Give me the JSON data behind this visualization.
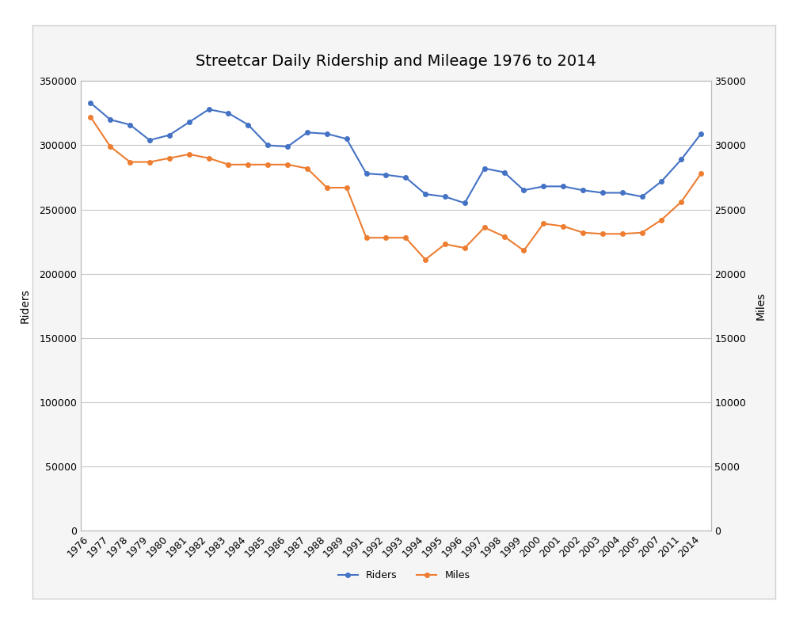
{
  "title": "Streetcar Daily Ridership and Mileage 1976 to 2014",
  "years": [
    1976,
    1977,
    1978,
    1979,
    1980,
    1981,
    1982,
    1983,
    1984,
    1985,
    1986,
    1987,
    1988,
    1989,
    1991,
    1992,
    1993,
    1994,
    1995,
    1996,
    1997,
    1998,
    1999,
    2000,
    2001,
    2002,
    2003,
    2004,
    2005,
    2007,
    2011,
    2014
  ],
  "riders": [
    333000,
    320000,
    316000,
    304000,
    308000,
    318000,
    328000,
    325000,
    316000,
    300000,
    299000,
    310000,
    309000,
    305000,
    278000,
    277000,
    275000,
    262000,
    260000,
    255000,
    282000,
    279000,
    265000,
    268000,
    268000,
    265000,
    263000,
    263000,
    260000,
    272000,
    289000,
    309000
  ],
  "miles": [
    32200,
    29900,
    28700,
    28700,
    29000,
    29300,
    29000,
    28500,
    28500,
    28500,
    28500,
    28200,
    26700,
    26700,
    22800,
    22800,
    22800,
    21100,
    22300,
    22000,
    23600,
    22900,
    21800,
    23900,
    23700,
    23200,
    23100,
    23100,
    23200,
    24200,
    25600,
    27800
  ],
  "riders_color": "#4472C4",
  "miles_color": "#ED7D31",
  "ylabel_left": "Riders",
  "ylabel_right": "Miles",
  "ylim_left": [
    0,
    350000
  ],
  "ylim_right": [
    0,
    35000
  ],
  "background_color": "#FFFFFF",
  "plot_bg_color": "#FFFFFF",
  "grid_color": "#C8C8C8",
  "box_color": "#D0D0D0",
  "legend_labels": [
    "Riders",
    "Miles"
  ],
  "title_fontsize": 14
}
